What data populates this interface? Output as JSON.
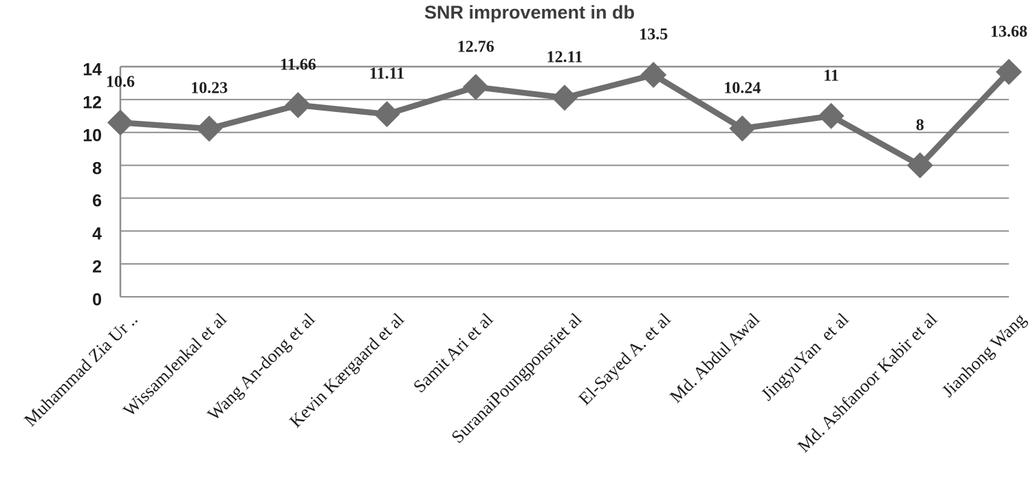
{
  "chart_data": {
    "type": "line",
    "title": "SNR improvement in db",
    "categories": [
      "Muhammad Zia Ur ..",
      "WissamJenkal et al",
      "Wang An-dong et al",
      "Kevin Kærgaard et al",
      "Samit Ari et al",
      "SuranaiPoungponsriet al",
      "El-Sayed A. et al",
      "Md. Abdul Awal",
      "JingyuYan  et al",
      "Md. Ashfanoor Kabir et al",
      "Jianhong Wang"
    ],
    "values": [
      10.6,
      10.23,
      11.66,
      11.11,
      12.76,
      12.11,
      13.5,
      10.24,
      11,
      8,
      13.68
    ],
    "data_labels": [
      "10.6",
      "10.23",
      "11.66",
      "11.11",
      "12.76",
      "12.11",
      "13.5",
      "10.24",
      "11",
      "8",
      "13.68"
    ],
    "y_ticks": [
      0,
      2,
      4,
      6,
      8,
      10,
      12,
      14
    ],
    "ylim": [
      0,
      14
    ],
    "xlabel": "",
    "ylabel": "",
    "grid": "horizontal",
    "legend_position": "none",
    "marker": "diamond",
    "colors": {
      "series": "#6e6e6e",
      "gridline": "#8f8f8f",
      "title_text": "#3c3c3c",
      "tick_text": "#1a1a1a",
      "label_text": "#1f1f1f",
      "background": "#ffffff"
    }
  }
}
